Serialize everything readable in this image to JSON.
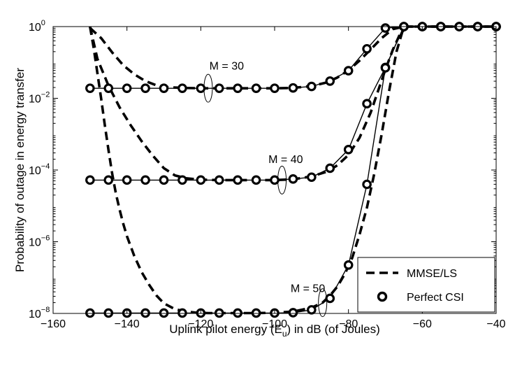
{
  "chart_data": {
    "type": "line",
    "title": "",
    "xlabel": "Uplink pilot energy (E_u) in dB (of Joules)",
    "xlabel_parts": {
      "pre": "Uplink pilot energy (E",
      "sub": "u",
      "post": ") in dB (of Joules)"
    },
    "ylabel": "Probability of outage in energy transfer",
    "xlim": [
      -160,
      -40
    ],
    "ylim_log10": [
      -8,
      0
    ],
    "yscale": "log",
    "grid": false,
    "legend_position": "bottom-right",
    "x_ticks": [
      -160,
      -140,
      -120,
      -100,
      -80,
      -60,
      -40
    ],
    "x_tick_labels": [
      "−160",
      "−140",
      "−120",
      "−100",
      "−80",
      "−60",
      "−40"
    ],
    "y_ticks_log10": [
      -8,
      -6,
      -4,
      -2,
      0
    ],
    "y_tick_labels": [
      {
        "base": "10",
        "exp": "−8"
      },
      {
        "base": "10",
        "exp": "−6"
      },
      {
        "base": "10",
        "exp": "−4"
      },
      {
        "base": "10",
        "exp": "−2"
      },
      {
        "base": "10",
        "exp": "0"
      }
    ],
    "legend": [
      {
        "label": "MMSE/LS",
        "style": "dashed"
      },
      {
        "label": "Perfect CSI",
        "style": "circle"
      }
    ],
    "series": [
      {
        "name": "MMSE/LS, M = 30",
        "style": "dashed",
        "x": [
          -150,
          -147,
          -144,
          -141,
          -138,
          -135,
          -132,
          -129,
          -125,
          -120,
          -115,
          -110,
          -105,
          -100,
          -95,
          -90,
          -86,
          -83,
          -80,
          -77,
          -74,
          -71,
          -68,
          -65,
          -60,
          -55,
          -50,
          -45,
          -40
        ],
        "log10y": [
          -0.04,
          -0.32,
          -0.72,
          -1.08,
          -1.33,
          -1.52,
          -1.64,
          -1.69,
          -1.71,
          -1.72,
          -1.72,
          -1.72,
          -1.72,
          -1.72,
          -1.71,
          -1.66,
          -1.56,
          -1.42,
          -1.22,
          -0.95,
          -0.64,
          -0.32,
          -0.07,
          0,
          0,
          0,
          0,
          0,
          0
        ]
      },
      {
        "name": "Perfect CSI, M = 30",
        "style": "circle",
        "x": [
          -150,
          -145,
          -140,
          -135,
          -130,
          -125,
          -120,
          -115,
          -110,
          -105,
          -100,
          -95,
          -90,
          -85,
          -80,
          -75,
          -70,
          -65,
          -60,
          -55,
          -50,
          -45,
          -40
        ],
        "log10y": [
          -1.72,
          -1.72,
          -1.72,
          -1.72,
          -1.72,
          -1.72,
          -1.72,
          -1.72,
          -1.72,
          -1.72,
          -1.72,
          -1.71,
          -1.67,
          -1.52,
          -1.23,
          -0.62,
          -0.04,
          0,
          0,
          0,
          0,
          0,
          0
        ]
      },
      {
        "name": "MMSE/LS, M = 40",
        "style": "dashed",
        "x": [
          -150,
          -148,
          -145,
          -142,
          -139,
          -136,
          -133,
          -130,
          -127,
          -124,
          -120,
          -115,
          -110,
          -105,
          -100,
          -95,
          -90,
          -86,
          -83,
          -80,
          -77,
          -74,
          -72,
          -70,
          -68,
          -66,
          -64,
          -60,
          -55,
          -50,
          -45,
          -40
        ],
        "log10y": [
          0,
          -0.9,
          -1.65,
          -2.25,
          -2.75,
          -3.2,
          -3.6,
          -3.95,
          -4.15,
          -4.23,
          -4.27,
          -4.28,
          -4.28,
          -4.28,
          -4.28,
          -4.26,
          -4.18,
          -4.05,
          -3.87,
          -3.58,
          -3.1,
          -2.4,
          -1.8,
          -1.2,
          -0.65,
          -0.2,
          0,
          0,
          0,
          0,
          0,
          0
        ]
      },
      {
        "name": "Perfect CSI, M = 40",
        "style": "circle",
        "x": [
          -150,
          -145,
          -140,
          -135,
          -130,
          -125,
          -120,
          -115,
          -110,
          -105,
          -100,
          -95,
          -90,
          -85,
          -80,
          -75,
          -70,
          -65,
          -60,
          -55,
          -50,
          -45,
          -40
        ],
        "log10y": [
          -4.28,
          -4.28,
          -4.28,
          -4.28,
          -4.28,
          -4.28,
          -4.28,
          -4.28,
          -4.28,
          -4.28,
          -4.28,
          -4.25,
          -4.2,
          -3.95,
          -3.43,
          -2.15,
          -1.14,
          0,
          0,
          0,
          0,
          0,
          0
        ]
      },
      {
        "name": "MMSE/LS, M = 50",
        "style": "dashed",
        "x": [
          -150,
          -149,
          -148,
          -147,
          -146,
          -145,
          -144,
          -143,
          -142,
          -141,
          -140,
          -138,
          -136,
          -134,
          -132,
          -130,
          -127,
          -124,
          -121,
          -118,
          -115,
          -110,
          -105,
          -100,
          -95,
          -90,
          -87,
          -85,
          -83,
          -81,
          -79,
          -77,
          -75,
          -73,
          -71,
          -69,
          -67,
          -65,
          -60,
          -55,
          -50,
          -45,
          -40
        ],
        "log10y": [
          0,
          -0.6,
          -1.3,
          -2.0,
          -2.75,
          -3.45,
          -4.1,
          -4.65,
          -5.1,
          -5.5,
          -5.85,
          -6.4,
          -6.85,
          -7.2,
          -7.5,
          -7.72,
          -7.88,
          -7.95,
          -7.98,
          -7.99,
          -7.99,
          -7.99,
          -7.99,
          -7.98,
          -7.95,
          -7.84,
          -7.7,
          -7.5,
          -7.25,
          -6.9,
          -6.45,
          -5.8,
          -5.05,
          -4.1,
          -3.0,
          -1.8,
          -0.7,
          0,
          0,
          0,
          0,
          0,
          0
        ]
      },
      {
        "name": "Perfect CSI, M = 50",
        "style": "circle",
        "x": [
          -150,
          -145,
          -140,
          -135,
          -130,
          -125,
          -120,
          -115,
          -110,
          -105,
          -100,
          -95,
          -90,
          -85,
          -80,
          -75,
          -70,
          -65,
          -60,
          -55,
          -50,
          -45,
          -40
        ],
        "log10y": [
          -7.99,
          -7.99,
          -7.99,
          -7.99,
          -7.99,
          -7.99,
          -7.99,
          -7.99,
          -7.99,
          -7.99,
          -7.99,
          -7.98,
          -7.9,
          -7.58,
          -6.65,
          -4.4,
          -1.15,
          0,
          0,
          0,
          0,
          0,
          0
        ]
      }
    ],
    "annotations": [
      {
        "text": "M = 30",
        "x": -113,
        "log10y": -1.2,
        "ellipse_x": -118,
        "ellipse_log10y": -1.72
      },
      {
        "text": "M = 40",
        "x": -97,
        "log10y": -3.8,
        "ellipse_x": -98,
        "ellipse_log10y": -4.28
      },
      {
        "text": "M = 50",
        "x": -91,
        "log10y": -7.4,
        "ellipse_x": -87,
        "ellipse_log10y": -7.7
      }
    ]
  }
}
